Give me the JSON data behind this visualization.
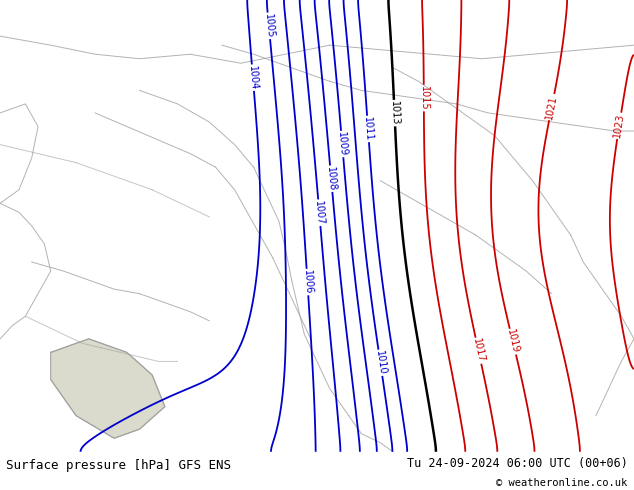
{
  "title": "Surface pressure [hPa] GFS ENS",
  "date_str": "Tu 24-09-2024 06:00 UTC (00+06)",
  "copyright": "© weatheronline.co.uk",
  "bg_color": "#b8e878",
  "contour_color_blue": "#0000cc",
  "contour_color_black": "#000000",
  "contour_color_red": "#cc0000",
  "border_color": "#a0a0a0",
  "figsize": [
    6.34,
    4.9
  ],
  "dpi": 100,
  "bottom_bar_color": "#ffffff",
  "title_fontsize": 9,
  "label_fontsize": 7,
  "isobars_blue": [
    1004,
    1005,
    1006,
    1007,
    1008,
    1009,
    1010,
    1011
  ],
  "isobars_black": [
    1013
  ],
  "isobars_red": [
    1015,
    1017,
    1019,
    1021,
    1023
  ],
  "contour_lw_blue": 1.3,
  "contour_lw_black": 1.8,
  "contour_lw_red": 1.3
}
